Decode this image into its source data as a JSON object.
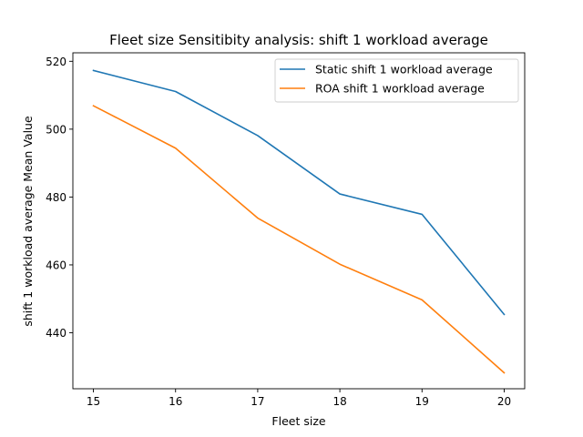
{
  "chart_data": {
    "type": "line",
    "title": "Fleet size Sensitibity analysis: shift 1 workload average",
    "xlabel": "Fleet size",
    "ylabel": "shift 1 workload average Mean Value",
    "x": [
      15,
      16,
      17,
      18,
      19,
      20
    ],
    "xticks": [
      "15",
      "16",
      "17",
      "18",
      "19",
      "20"
    ],
    "yticks": [
      "440",
      "460",
      "480",
      "500",
      "520"
    ],
    "xlim": [
      14.75,
      20.25
    ],
    "ylim": [
      423.5,
      522.5
    ],
    "grid": false,
    "legend_position": "upper right",
    "series": [
      {
        "name": "Static shift 1 workload average",
        "color": "#1f77b4",
        "values": [
          517.3,
          511.1,
          498.1,
          480.9,
          474.9,
          445.4
        ]
      },
      {
        "name": "ROA shift 1 workload average",
        "color": "#ff7f0e",
        "values": [
          506.9,
          494.4,
          473.8,
          460.2,
          449.7,
          428.2
        ]
      }
    ]
  }
}
